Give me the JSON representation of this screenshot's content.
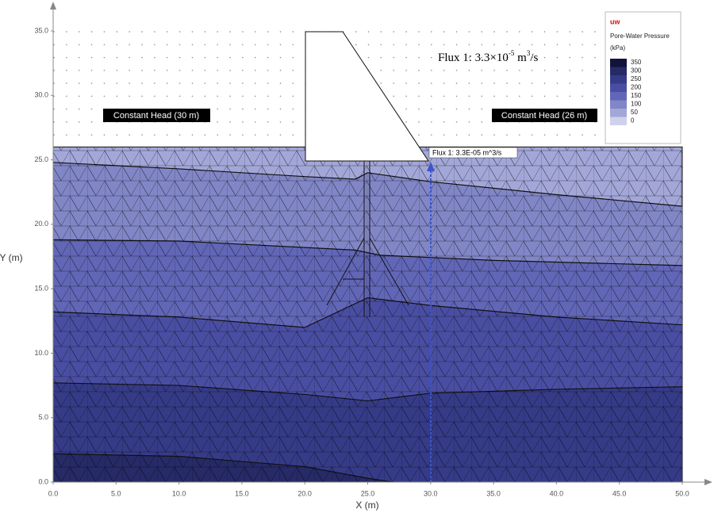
{
  "chart_data": {
    "type": "contour",
    "xlabel": "X (m)",
    "ylabel": "Y (m)",
    "xlim": [
      0,
      50
    ],
    "ylim": [
      0,
      35
    ],
    "xticks": [
      {
        "value": 0,
        "label": "0.0"
      },
      {
        "value": 5,
        "label": "5.0"
      },
      {
        "value": 10,
        "label": "10.0"
      },
      {
        "value": 15,
        "label": "15.0"
      },
      {
        "value": 20,
        "label": "20.0"
      },
      {
        "value": 25,
        "label": "25.0"
      },
      {
        "value": 30,
        "label": "30.0"
      },
      {
        "value": 35,
        "label": "35.0"
      },
      {
        "value": 40,
        "label": "40.0"
      },
      {
        "value": 45,
        "label": "45.0"
      },
      {
        "value": 50,
        "label": "50.0"
      }
    ],
    "yticks": [
      {
        "value": 0,
        "label": "0.0"
      },
      {
        "value": 5,
        "label": "5.0"
      },
      {
        "value": 10,
        "label": "10.0"
      },
      {
        "value": 15,
        "label": "15.0"
      },
      {
        "value": 20,
        "label": "20.0"
      },
      {
        "value": 25,
        "label": "25.0"
      },
      {
        "value": 30,
        "label": "30.0"
      },
      {
        "value": 35,
        "label": "35.0"
      }
    ],
    "domain_top": 26,
    "domain_color": "#a3a7d8",
    "contours": [
      {
        "color": "#8186c6",
        "x": [
          0,
          10,
          20,
          24,
          25,
          30,
          40,
          50
        ],
        "y": [
          24.8,
          24.3,
          23.7,
          23.5,
          24.0,
          23.3,
          22.3,
          21.4
        ]
      },
      {
        "color": "#6266b6",
        "x": [
          0,
          10,
          20,
          24,
          26,
          35,
          50
        ],
        "y": [
          18.8,
          18.7,
          18.2,
          18.0,
          17.6,
          17.2,
          16.8
        ]
      },
      {
        "color": "#4a4ea2",
        "x": [
          0,
          10,
          20,
          25,
          30,
          40,
          50
        ],
        "y": [
          13.2,
          12.8,
          12.0,
          14.3,
          13.7,
          12.8,
          12.2
        ]
      },
      {
        "color": "#363b87",
        "x": [
          0,
          10,
          20,
          25,
          30,
          40,
          50
        ],
        "y": [
          7.7,
          7.5,
          6.8,
          6.3,
          6.9,
          7.2,
          7.4
        ]
      },
      {
        "color": "#262a66",
        "x": [
          0,
          10,
          20,
          25,
          27
        ],
        "y": [
          2.2,
          2.0,
          1.2,
          0.3,
          0
        ]
      }
    ],
    "annotations": {
      "left_head": "Constant Head (30 m)",
      "right_head": "Constant Head (26 m)",
      "flux_label": "Flux 1: 3.3E-05 m^3/s",
      "flux_note": {
        "base": "Flux 1: 3.3×10",
        "exp": "-5",
        "unit": " m",
        "unit_exp": "3",
        "tail": "/s"
      }
    },
    "legend": {
      "symbol": "uw",
      "title": "Pore-Water Pressure",
      "unit": "(kPa)",
      "levels": [
        350,
        300,
        250,
        200,
        150,
        100,
        50,
        0
      ],
      "colors": [
        "#11133a",
        "#262a66",
        "#363b87",
        "#4a4ea2",
        "#6266b6",
        "#8186c6",
        "#a3a7d8",
        "#cfd1ec"
      ]
    }
  }
}
